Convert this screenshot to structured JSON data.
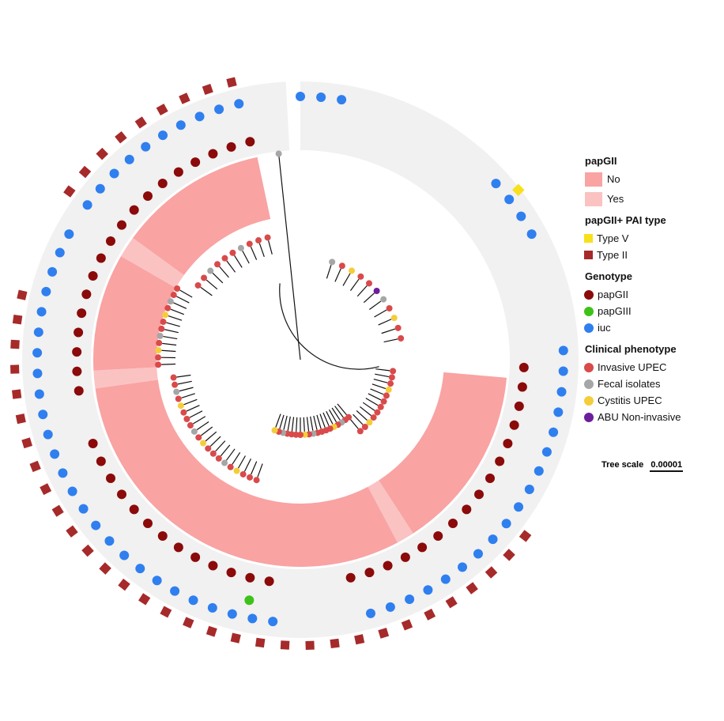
{
  "legend": {
    "papgii": {
      "title": "papGII",
      "items": [
        {
          "label": "No",
          "color": "#f9a3a3"
        },
        {
          "label": "Yes",
          "color": "#fbc2c2"
        }
      ]
    },
    "pai_type": {
      "title": "papGII+ PAI type",
      "items": [
        {
          "label": "Type V",
          "color": "#f8e01c"
        },
        {
          "label": "Type II",
          "color": "#a62a2a"
        }
      ]
    },
    "genotype": {
      "title": "Genotype",
      "items": [
        {
          "label": "papGII",
          "color": "#8b0a0a"
        },
        {
          "label": "papGIII",
          "color": "#3ec21a"
        },
        {
          "label": "iuc",
          "color": "#2f7fef"
        }
      ]
    },
    "phenotype": {
      "title": "Clinical phenotype",
      "items": [
        {
          "label": "Invasive UPEC",
          "color": "#d94a4a"
        },
        {
          "label": "Fecal isolates",
          "color": "#a6a6a6"
        },
        {
          "label": "Cystitis UPEC",
          "color": "#f5cd3a"
        },
        {
          "label": "ABU Non-invasive",
          "color": "#6c1e9c"
        }
      ]
    }
  },
  "scale": {
    "label": "Tree scale",
    "value": "0.00001"
  },
  "ring_colors": {
    "band": "#f1f1f1",
    "no": "#f9a3a3",
    "yes": "#fbc2c2"
  }
}
